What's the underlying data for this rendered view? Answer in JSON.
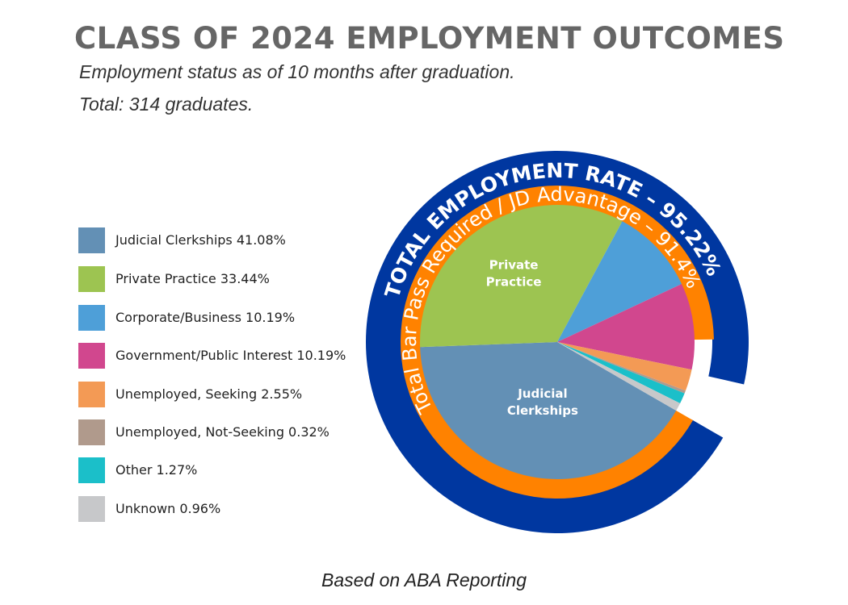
{
  "header": {
    "title": "CLASS OF 2024 EMPLOYMENT OUTCOMES",
    "subtitle_line1": "Employment status as of 10 months after graduation.",
    "subtitle_line2": "Total: 314 graduates."
  },
  "footer": {
    "note": "Based on ABA Reporting"
  },
  "chart_data": {
    "type": "pie",
    "title": "CLASS OF 2024 EMPLOYMENT OUTCOMES",
    "slices": [
      {
        "label": "Judicial Clerkships 41.08%",
        "name": "Judicial Clerkships",
        "value": 41.08,
        "color": "#6390B5",
        "pie_label": [
          "Judicial",
          "Clerkships"
        ]
      },
      {
        "label": "Private Practice 33.44%",
        "name": "Private Practice",
        "value": 33.44,
        "color": "#9DC451",
        "pie_label": [
          "Private",
          "Practice"
        ]
      },
      {
        "label": "Corporate/Business 10.19%",
        "name": "Corporate/Business",
        "value": 10.19,
        "color": "#4E9FD8",
        "pie_label": []
      },
      {
        "label": "Government/Public Interest 10.19%",
        "name": "Government/Public Interest",
        "value": 10.19,
        "color": "#D1478E",
        "pie_label": []
      },
      {
        "label": "Unemployed, Seeking 2.55%",
        "name": "Unemployed, Seeking",
        "value": 2.55,
        "color": "#F39A55",
        "pie_label": []
      },
      {
        "label": "Unemployed, Not-Seeking 0.32%",
        "name": "Unemployed, Not-Seeking",
        "value": 0.32,
        "color": "#B09A8C",
        "pie_label": []
      },
      {
        "label": "Other 1.27%",
        "name": "Other",
        "value": 1.27,
        "color": "#1BBFC9",
        "pie_label": []
      },
      {
        "label": "Unknown 0.96%",
        "name": "Unknown",
        "value": 0.96,
        "color": "#C7C8CA",
        "pie_label": []
      }
    ],
    "rings": [
      {
        "label": "TOTAL EMPLOYMENT RATE – 95.22%",
        "value": 95.22,
        "color": "#0037A0"
      },
      {
        "label": "Total Bar Pass Required / JD Advantage – 91.4%",
        "value": 91.4,
        "color": "#FF8200"
      }
    ],
    "legend_position": "left"
  }
}
